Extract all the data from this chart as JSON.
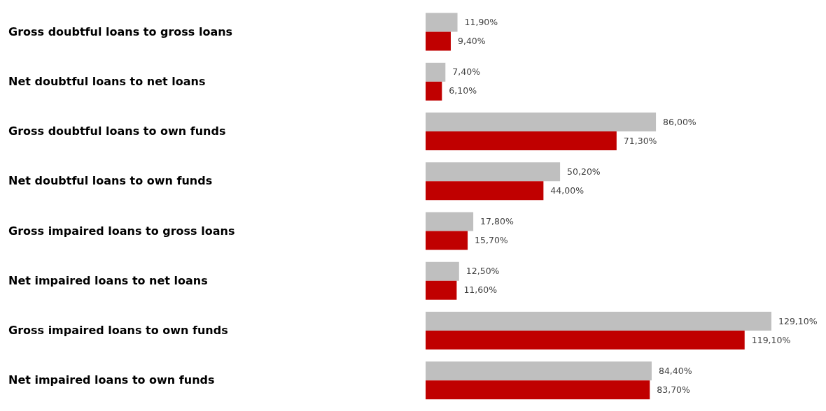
{
  "chart_data": {
    "type": "bar",
    "orientation": "horizontal",
    "categories": [
      "Gross doubtful loans to gross loans",
      "Net doubtful loans to net loans",
      "Gross doubtful loans to own funds",
      "Net doubtful loans to own funds",
      "Gross impaired loans to gross loans",
      "Net impaired loans to net loans",
      "Gross impaired loans to own funds",
      "Net impaired loans to own funds"
    ],
    "series": [
      {
        "color": "#bfbfbf",
        "values": [
          11.9,
          7.4,
          86.0,
          50.2,
          17.8,
          12.5,
          129.1,
          84.4
        ],
        "value_labels": [
          "11,90%",
          "7,40%",
          "86,00%",
          "50,20%",
          "17,80%",
          "12,50%",
          "129,10%",
          "84,40%"
        ]
      },
      {
        "color": "#c00000",
        "values": [
          9.4,
          6.1,
          71.3,
          44.0,
          15.7,
          11.6,
          119.1,
          83.7
        ],
        "value_labels": [
          "9,40%",
          "6,10%",
          "71,30%",
          "44,00%",
          "15,70%",
          "11,60%",
          "119,10%",
          "83,70%"
        ]
      }
    ],
    "tick_labels": "y"
  }
}
